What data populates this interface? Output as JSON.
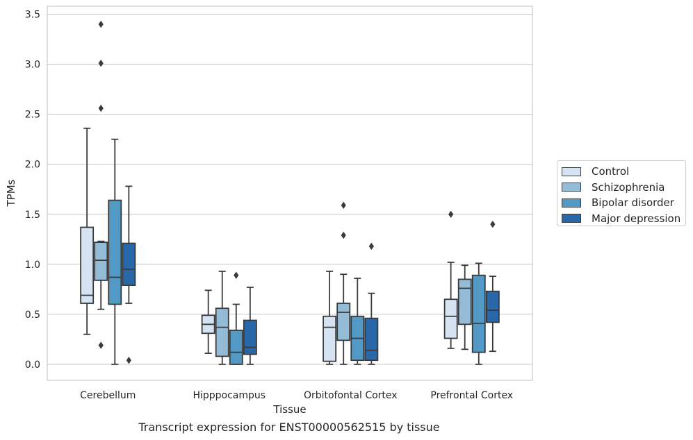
{
  "chart_data": {
    "type": "box",
    "subtitle": "Transcript expression for ENST00000562515 by tissue",
    "xlabel": "Tissue",
    "ylabel": "TPMs",
    "ylim": [
      -0.16,
      3.58
    ],
    "yticks": [
      "0.0",
      "0.5",
      "1.0",
      "1.5",
      "2.0",
      "2.5",
      "3.0",
      "3.5"
    ],
    "ytick_values": [
      0,
      0.5,
      1,
      1.5,
      2,
      2.5,
      3,
      3.5
    ],
    "grid": "horizontal",
    "legend_position": "right",
    "categories": [
      "Cerebellum",
      "Hipppocampus",
      "Orbitofontal Cortex",
      "Prefrontal Cortex"
    ],
    "series": [
      {
        "name": "Control",
        "color": "#d5e3f2",
        "boxes": [
          {
            "whisker_low": 0.3,
            "q1": 0.61,
            "median": 0.69,
            "q3": 1.37,
            "whisker_high": 2.36,
            "outliers": []
          },
          {
            "whisker_low": 0.11,
            "q1": 0.31,
            "median": 0.4,
            "q3": 0.49,
            "whisker_high": 0.74,
            "outliers": []
          },
          {
            "whisker_low": 0.0,
            "q1": 0.03,
            "median": 0.37,
            "q3": 0.48,
            "whisker_high": 0.93,
            "outliers": []
          },
          {
            "whisker_low": 0.16,
            "q1": 0.26,
            "median": 0.48,
            "q3": 0.65,
            "whisker_high": 1.02,
            "outliers": [
              1.5
            ]
          }
        ]
      },
      {
        "name": "Schizophrenia",
        "color": "#94bcd7",
        "boxes": [
          {
            "whisker_low": 0.55,
            "q1": 0.84,
            "median": 1.04,
            "q3": 1.22,
            "whisker_high": 1.23,
            "outliers": [
              0.19,
              2.56,
              3.01,
              3.4
            ]
          },
          {
            "whisker_low": 0.0,
            "q1": 0.08,
            "median": 0.37,
            "q3": 0.56,
            "whisker_high": 0.93,
            "outliers": []
          },
          {
            "whisker_low": 0.0,
            "q1": 0.24,
            "median": 0.52,
            "q3": 0.61,
            "whisker_high": 0.9,
            "outliers": [
              1.29,
              1.59
            ]
          },
          {
            "whisker_low": 0.15,
            "q1": 0.4,
            "median": 0.76,
            "q3": 0.85,
            "whisker_high": 0.99,
            "outliers": []
          }
        ]
      },
      {
        "name": "Bipolar disorder",
        "color": "#5399c5",
        "boxes": [
          {
            "whisker_low": 0.0,
            "q1": 0.6,
            "median": 0.87,
            "q3": 1.64,
            "whisker_high": 2.25,
            "outliers": []
          },
          {
            "whisker_low": 0.0,
            "q1": 0.0,
            "median": 0.12,
            "q3": 0.34,
            "whisker_high": 0.6,
            "outliers": [
              0.89
            ]
          },
          {
            "whisker_low": 0.0,
            "q1": 0.04,
            "median": 0.26,
            "q3": 0.48,
            "whisker_high": 0.86,
            "outliers": []
          },
          {
            "whisker_low": 0.0,
            "q1": 0.12,
            "median": 0.41,
            "q3": 0.89,
            "whisker_high": 1.01,
            "outliers": []
          }
        ]
      },
      {
        "name": "Major depression",
        "color": "#2867a8",
        "boxes": [
          {
            "whisker_low": 0.61,
            "q1": 0.79,
            "median": 0.95,
            "q3": 1.21,
            "whisker_high": 1.78,
            "outliers": [
              0.04
            ]
          },
          {
            "whisker_low": 0.0,
            "q1": 0.1,
            "median": 0.17,
            "q3": 0.44,
            "whisker_high": 0.77,
            "outliers": []
          },
          {
            "whisker_low": 0.0,
            "q1": 0.04,
            "median": 0.14,
            "q3": 0.46,
            "whisker_high": 0.71,
            "outliers": [
              1.18
            ]
          },
          {
            "whisker_low": 0.13,
            "q1": 0.42,
            "median": 0.54,
            "q3": 0.73,
            "whisker_high": 0.88,
            "outliers": [
              1.4
            ]
          }
        ]
      }
    ]
  }
}
